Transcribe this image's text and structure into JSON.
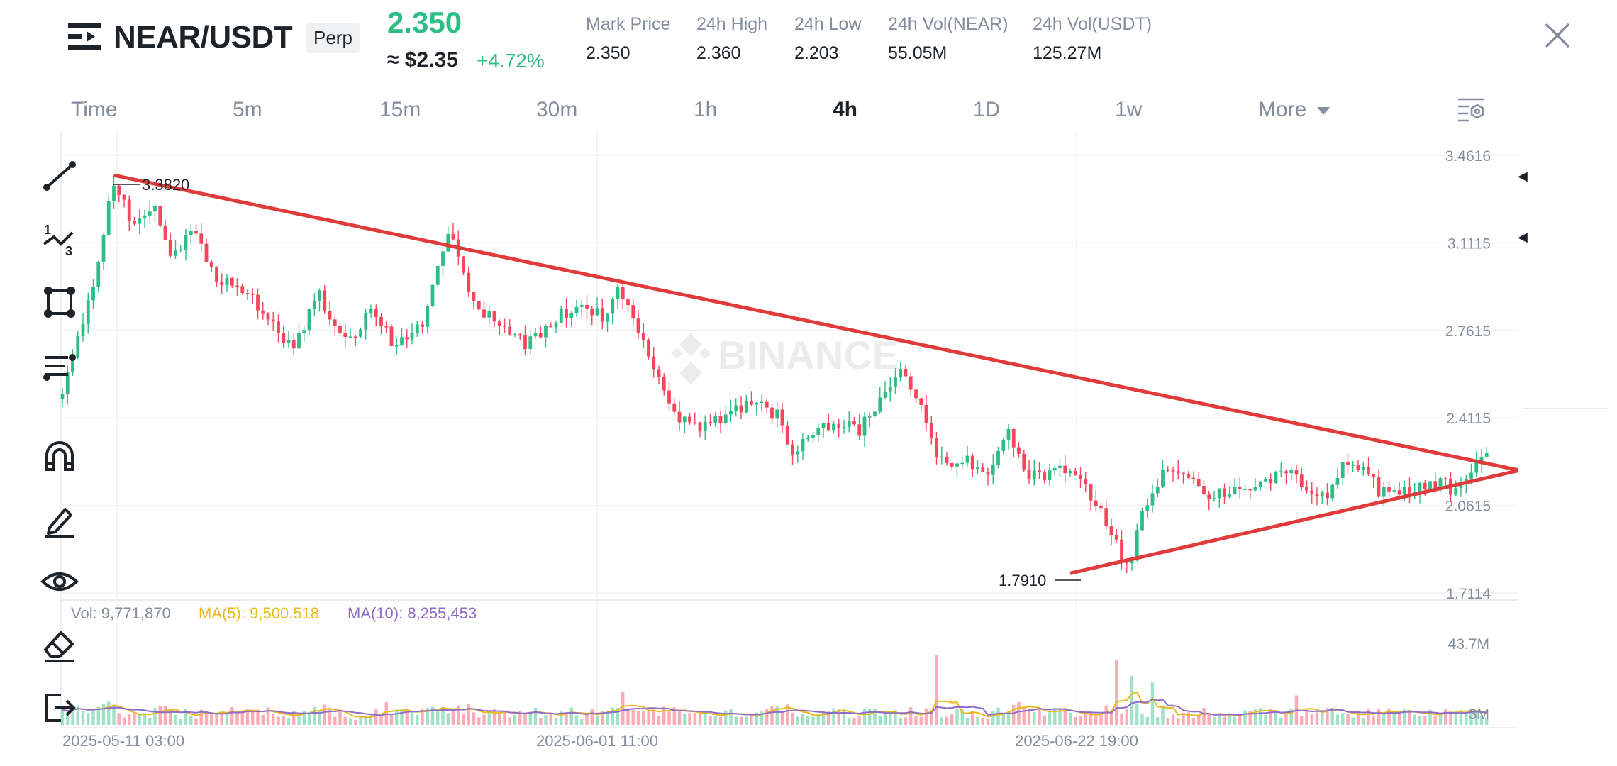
{
  "header": {
    "pair": "NEAR/USDT",
    "contract_type": "Perp",
    "last_price": "2.350",
    "approx_price": "≈ $2.35",
    "change": "+4.72%",
    "stats": [
      {
        "label": "Mark Price",
        "value": "2.350"
      },
      {
        "label": "24h High",
        "value": "2.360"
      },
      {
        "label": "24h Low",
        "value": "2.203"
      },
      {
        "label": "24h Vol(NEAR)",
        "value": "55.05M"
      },
      {
        "label": "24h Vol(USDT)",
        "value": "125.27M"
      }
    ]
  },
  "tabs": [
    "Time",
    "5m",
    "15m",
    "30m",
    "1h",
    "4h",
    "1D",
    "1w"
  ],
  "active_tab": "4h",
  "more_label": "More",
  "watermark": "BINANCE",
  "price_axis": [
    "3.4616",
    "3.1115",
    "2.7615",
    "2.4115",
    "2.0615",
    "1.7114"
  ],
  "annotations": {
    "high": "3.3820",
    "low": "1.7910"
  },
  "volume": {
    "vol_label": "Vol: 9,771,870",
    "ma5_label": "MA(5): 9,500,518",
    "ma10_label": "MA(10): 8,255,453",
    "axis": [
      "43.7M",
      "3M"
    ]
  },
  "time_axis": [
    "2025-05-11 03:00",
    "2025-06-01 11:00",
    "2025-06-22 19:00"
  ],
  "colors": {
    "up": "#2ebd85",
    "down": "#f6465d",
    "trendline": "#e03a3a",
    "ma5": "#e9b81b",
    "ma10": "#8e6cc8",
    "grid": "#f0f1f2",
    "axis_text": "#848e9c"
  },
  "tools": [
    "trend-line-icon",
    "fib-icon",
    "rectangle-icon",
    "indicators-icon",
    "magnet-icon",
    "draw-icon",
    "visibility-icon",
    "eraser-icon",
    "exit-icon"
  ],
  "chart_data": {
    "type": "candlestick",
    "price_range": [
      1.7114,
      3.4616
    ],
    "anchors": [
      [
        0,
        2.52
      ],
      [
        6,
        2.93
      ],
      [
        10,
        3.38
      ],
      [
        14,
        3.17
      ],
      [
        18,
        3.24
      ],
      [
        21,
        3.06
      ],
      [
        25,
        3.16
      ],
      [
        30,
        2.97
      ],
      [
        36,
        2.93
      ],
      [
        40,
        2.79
      ],
      [
        45,
        2.7
      ],
      [
        50,
        2.9
      ],
      [
        55,
        2.71
      ],
      [
        60,
        2.84
      ],
      [
        65,
        2.69
      ],
      [
        70,
        2.8
      ],
      [
        73,
        3.02
      ],
      [
        75,
        3.12
      ],
      [
        77,
        3.08
      ],
      [
        80,
        2.86
      ],
      [
        85,
        2.79
      ],
      [
        90,
        2.71
      ],
      [
        95,
        2.79
      ],
      [
        100,
        2.87
      ],
      [
        105,
        2.82
      ],
      [
        108,
        2.92
      ],
      [
        110,
        2.87
      ],
      [
        113,
        2.7
      ],
      [
        116,
        2.56
      ],
      [
        120,
        2.41
      ],
      [
        125,
        2.37
      ],
      [
        130,
        2.43
      ],
      [
        135,
        2.47
      ],
      [
        139,
        2.42
      ],
      [
        142,
        2.27
      ],
      [
        146,
        2.33
      ],
      [
        150,
        2.4
      ],
      [
        155,
        2.36
      ],
      [
        160,
        2.51
      ],
      [
        163,
        2.62
      ],
      [
        165,
        2.55
      ],
      [
        168,
        2.4
      ],
      [
        170,
        2.23
      ],
      [
        175,
        2.25
      ],
      [
        180,
        2.2
      ],
      [
        184,
        2.34
      ],
      [
        188,
        2.17
      ],
      [
        195,
        2.21
      ],
      [
        200,
        2.1
      ],
      [
        204,
        1.96
      ],
      [
        207,
        1.81
      ],
      [
        211,
        2.08
      ],
      [
        214,
        2.2
      ],
      [
        218,
        2.21
      ],
      [
        222,
        2.1
      ],
      [
        227,
        2.12
      ],
      [
        231,
        2.14
      ],
      [
        236,
        2.17
      ],
      [
        240,
        2.18
      ],
      [
        244,
        2.08
      ],
      [
        247,
        2.13
      ],
      [
        250,
        2.25
      ],
      [
        253,
        2.21
      ],
      [
        256,
        2.12
      ],
      [
        260,
        2.1
      ],
      [
        264,
        2.13
      ],
      [
        268,
        2.16
      ],
      [
        271,
        2.11
      ],
      [
        274,
        2.21
      ],
      [
        277,
        2.28
      ]
    ],
    "trendlines": [
      {
        "from": [
          10,
          3.382
        ],
        "to": [
          300,
          2.13
        ]
      },
      {
        "from": [
          196,
          1.79
        ],
        "to": [
          300,
          2.28
        ]
      }
    ]
  }
}
